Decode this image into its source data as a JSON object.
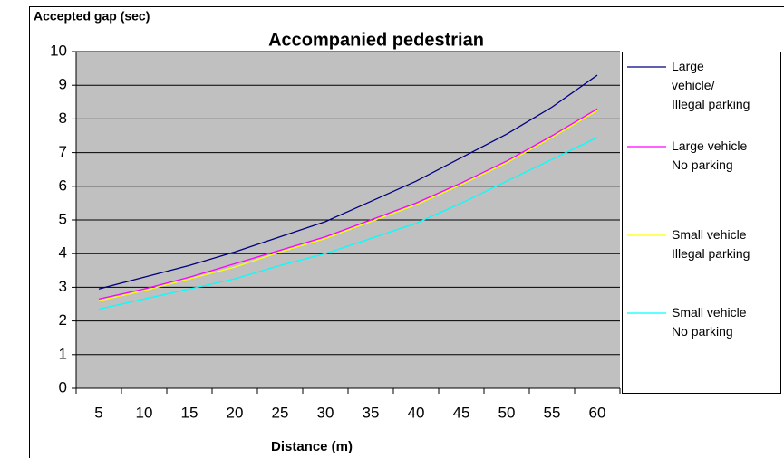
{
  "chart_data": {
    "type": "line",
    "title": "Accompanied pedestrian",
    "y_label": "Accepted gap (sec)",
    "x_label": "Distance (m)",
    "categories": [
      "5",
      "10",
      "15",
      "20",
      "25",
      "30",
      "35",
      "40",
      "45",
      "50",
      "55",
      "60"
    ],
    "series": [
      {
        "name": "Large\nvehicle/\nIllegal parking",
        "color": "#000080",
        "values": [
          2.95,
          3.3,
          3.65,
          4.05,
          4.5,
          4.95,
          5.55,
          6.15,
          6.85,
          7.55,
          8.35,
          9.3
        ]
      },
      {
        "name": "Large vehicle\nNo parking",
        "color": "#ff00ff",
        "values": [
          2.65,
          2.95,
          3.3,
          3.7,
          4.1,
          4.5,
          5.0,
          5.5,
          6.1,
          6.75,
          7.5,
          8.3
        ]
      },
      {
        "name": "Small vehicle\nIllegal parking",
        "color": "#ffff00",
        "values": [
          2.6,
          2.9,
          3.25,
          3.6,
          4.05,
          4.45,
          4.95,
          5.45,
          6.05,
          6.7,
          7.45,
          8.25
        ]
      },
      {
        "name": "Small vehicle\nNo parking",
        "color": "#00ffff",
        "values": [
          2.35,
          2.65,
          2.95,
          3.25,
          3.65,
          4.0,
          4.45,
          4.9,
          5.5,
          6.15,
          6.8,
          7.45
        ]
      }
    ],
    "ylim": [
      0,
      10
    ],
    "yticks": [
      0,
      1,
      2,
      3,
      4,
      5,
      6,
      7,
      8,
      9,
      10
    ],
    "grid": true,
    "legend": "right"
  }
}
